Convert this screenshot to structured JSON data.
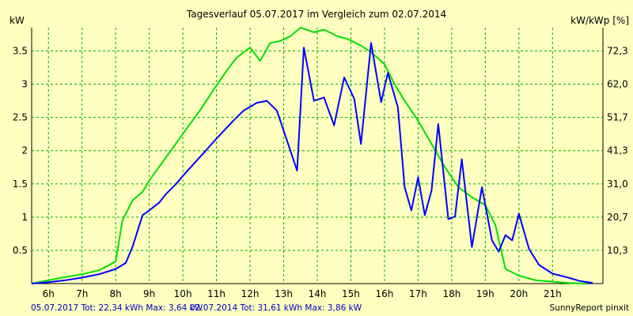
{
  "chart_data": {
    "type": "line",
    "title": "Tagesverlauf 05.07.2017 im Vergleich zum 02.07.2014",
    "ylabel": "kW",
    "ylabel_right": "kW/kWp [%]",
    "x_unit": "hour",
    "xlim": [
      5.5,
      22.5
    ],
    "ylim": [
      0,
      3.85
    ],
    "xticks": [
      "6h",
      "7h",
      "8h",
      "9h",
      "10h",
      "11h",
      "12h",
      "13h",
      "14h",
      "15h",
      "16h",
      "17h",
      "18h",
      "19h",
      "20h",
      "21h"
    ],
    "yticks_left": [
      "0.5",
      "1",
      "1.5",
      "2",
      "2.5",
      "3",
      "3.5"
    ],
    "yticks_right": [
      "10,3",
      "20,7",
      "31,0",
      "41,3",
      "51,7",
      "62,0",
      "72,3"
    ],
    "grid": true,
    "series": [
      {
        "name": "05.07.2017",
        "color": "#0000ff",
        "x": [
          5.5,
          6.0,
          6.5,
          7.0,
          7.5,
          8.0,
          8.3,
          8.5,
          8.8,
          9.0,
          9.3,
          9.5,
          9.8,
          10.0,
          10.5,
          11.0,
          11.5,
          11.8,
          12.2,
          12.5,
          12.8,
          13.2,
          13.4,
          13.6,
          13.9,
          14.2,
          14.5,
          14.8,
          15.1,
          15.3,
          15.6,
          15.9,
          16.1,
          16.4,
          16.6,
          16.8,
          17.0,
          17.2,
          17.4,
          17.6,
          17.9,
          18.1,
          18.3,
          18.6,
          18.9,
          19.2,
          19.4,
          19.6,
          19.8,
          20.0,
          20.3,
          20.6,
          21.0,
          21.4,
          21.8,
          22.2
        ],
        "values": [
          0.0,
          0.02,
          0.05,
          0.09,
          0.14,
          0.22,
          0.31,
          0.55,
          1.03,
          1.1,
          1.22,
          1.35,
          1.5,
          1.62,
          1.9,
          2.18,
          2.45,
          2.6,
          2.72,
          2.75,
          2.6,
          2.0,
          1.7,
          3.55,
          2.75,
          2.8,
          2.38,
          3.1,
          2.78,
          2.1,
          3.62,
          2.73,
          3.17,
          2.65,
          1.45,
          1.1,
          1.6,
          1.03,
          1.4,
          2.4,
          0.97,
          1.01,
          1.87,
          0.55,
          1.45,
          0.65,
          0.48,
          0.73,
          0.65,
          1.05,
          0.52,
          0.28,
          0.15,
          0.1,
          0.04,
          0.01
        ]
      },
      {
        "name": "02.07.2014",
        "color": "#00e000",
        "x": [
          5.5,
          6.0,
          6.5,
          7.0,
          7.5,
          8.0,
          8.2,
          8.5,
          8.8,
          9.0,
          9.5,
          10.0,
          10.5,
          11.0,
          11.3,
          11.6,
          12.0,
          12.3,
          12.6,
          12.9,
          13.2,
          13.5,
          13.9,
          14.2,
          14.6,
          14.9,
          15.3,
          15.6,
          16.0,
          16.3,
          16.6,
          17.0,
          17.4,
          17.8,
          18.2,
          18.6,
          19.0,
          19.3,
          19.6,
          20.0,
          20.5,
          21.0,
          21.5,
          22.0
        ],
        "values": [
          0.0,
          0.05,
          0.1,
          0.14,
          0.2,
          0.33,
          0.95,
          1.25,
          1.38,
          1.55,
          1.9,
          2.25,
          2.6,
          2.98,
          3.2,
          3.4,
          3.55,
          3.35,
          3.62,
          3.65,
          3.72,
          3.85,
          3.78,
          3.82,
          3.72,
          3.68,
          3.58,
          3.48,
          3.3,
          3.0,
          2.75,
          2.45,
          2.1,
          1.75,
          1.45,
          1.3,
          1.18,
          0.88,
          0.22,
          0.12,
          0.05,
          0.03,
          0.01,
          0.0
        ]
      }
    ]
  },
  "footer": {
    "stats_2017": "05.07.2017 Tot: 22,34 kWh Max: 3,64 kW",
    "stats_2014": "02.07.2014 Tot: 31,61 kWh Max: 3,86 kW",
    "brand": "SunnyReport pinxit"
  },
  "colors": {
    "background": "#ffffc0",
    "grid": "#00b000",
    "text": "#000000",
    "footer_text": "#0000c0"
  }
}
